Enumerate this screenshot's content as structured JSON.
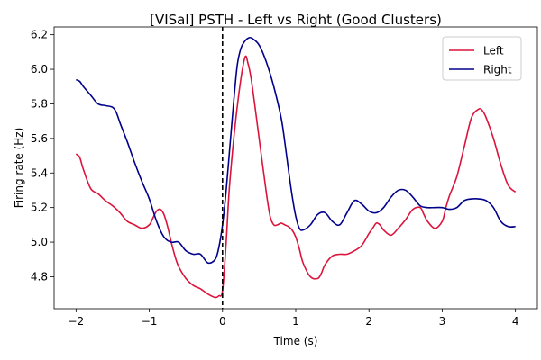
{
  "chart_data": {
    "type": "line",
    "title": "[VISal] PSTH - Left vs Right (Good Clusters)",
    "xlabel": "Time (s)",
    "ylabel": "Firing rate (Hz)",
    "xlim": [
      -2.3,
      4.3
    ],
    "ylim": [
      4.615,
      6.245
    ],
    "xticks": [
      -2,
      -1,
      0,
      1,
      2,
      3,
      4
    ],
    "yticks": [
      4.8,
      5.0,
      5.2,
      5.4,
      5.6,
      5.8,
      6.0,
      6.2
    ],
    "xtick_labels": [
      "−2",
      "−1",
      "0",
      "1",
      "2",
      "3",
      "4"
    ],
    "ytick_labels": [
      "4.8",
      "5.0",
      "5.2",
      "5.4",
      "5.6",
      "5.8",
      "6.0",
      "6.2"
    ],
    "vline": {
      "x": 0,
      "style": "dashed",
      "color": "#000000"
    },
    "legend_position": "top-right",
    "grid": false,
    "series": [
      {
        "name": "Left",
        "color": "#dc143c",
        "x": [
          -2.0,
          -1.95,
          -1.9,
          -1.8,
          -1.7,
          -1.6,
          -1.5,
          -1.4,
          -1.3,
          -1.2,
          -1.1,
          -1.0,
          -0.95,
          -0.9,
          -0.85,
          -0.8,
          -0.75,
          -0.7,
          -0.65,
          -0.6,
          -0.5,
          -0.4,
          -0.3,
          -0.2,
          -0.1,
          -0.05,
          0.0,
          0.05,
          0.1,
          0.2,
          0.3,
          0.35,
          0.4,
          0.5,
          0.6,
          0.65,
          0.7,
          0.75,
          0.8,
          0.85,
          0.9,
          0.95,
          1.0,
          1.05,
          1.1,
          1.2,
          1.3,
          1.35,
          1.4,
          1.5,
          1.6,
          1.7,
          1.8,
          1.9,
          2.0,
          2.05,
          2.1,
          2.15,
          2.2,
          2.3,
          2.4,
          2.5,
          2.6,
          2.7,
          2.75,
          2.8,
          2.9,
          3.0,
          3.05,
          3.1,
          3.2,
          3.3,
          3.4,
          3.5,
          3.55,
          3.6,
          3.7,
          3.8,
          3.9,
          4.0
        ],
        "values": [
          5.51,
          5.49,
          5.42,
          5.31,
          5.28,
          5.24,
          5.21,
          5.17,
          5.12,
          5.1,
          5.08,
          5.1,
          5.14,
          5.18,
          5.19,
          5.16,
          5.09,
          5.0,
          4.92,
          4.86,
          4.79,
          4.75,
          4.73,
          4.7,
          4.68,
          4.69,
          4.72,
          5.0,
          5.35,
          5.78,
          6.06,
          6.03,
          5.92,
          5.6,
          5.28,
          5.15,
          5.1,
          5.1,
          5.11,
          5.1,
          5.09,
          5.07,
          5.03,
          4.96,
          4.88,
          4.8,
          4.79,
          4.82,
          4.87,
          4.92,
          4.93,
          4.93,
          4.95,
          4.98,
          5.05,
          5.08,
          5.11,
          5.1,
          5.07,
          5.04,
          5.08,
          5.13,
          5.19,
          5.2,
          5.16,
          5.12,
          5.08,
          5.12,
          5.2,
          5.27,
          5.38,
          5.55,
          5.72,
          5.77,
          5.76,
          5.72,
          5.6,
          5.45,
          5.33,
          5.29
        ]
      },
      {
        "name": "Right",
        "color": "#00008b",
        "x": [
          -2.0,
          -1.95,
          -1.9,
          -1.8,
          -1.7,
          -1.6,
          -1.5,
          -1.45,
          -1.4,
          -1.3,
          -1.2,
          -1.1,
          -1.0,
          -0.9,
          -0.8,
          -0.7,
          -0.6,
          -0.5,
          -0.4,
          -0.3,
          -0.2,
          -0.1,
          -0.05,
          0.0,
          0.05,
          0.1,
          0.15,
          0.2,
          0.25,
          0.3,
          0.35,
          0.4,
          0.5,
          0.6,
          0.7,
          0.8,
          0.85,
          0.9,
          0.95,
          1.0,
          1.05,
          1.1,
          1.2,
          1.3,
          1.4,
          1.5,
          1.6,
          1.7,
          1.8,
          1.9,
          2.0,
          2.1,
          2.2,
          2.3,
          2.4,
          2.5,
          2.6,
          2.7,
          2.8,
          2.9,
          3.0,
          3.1,
          3.2,
          3.3,
          3.4,
          3.5,
          3.6,
          3.7,
          3.8,
          3.9,
          4.0
        ],
        "values": [
          5.94,
          5.93,
          5.9,
          5.85,
          5.8,
          5.79,
          5.78,
          5.75,
          5.69,
          5.58,
          5.46,
          5.35,
          5.25,
          5.12,
          5.03,
          5.0,
          5.0,
          4.95,
          4.93,
          4.93,
          4.88,
          4.9,
          4.97,
          5.1,
          5.3,
          5.55,
          5.8,
          6.02,
          6.12,
          6.16,
          6.18,
          6.18,
          6.14,
          6.04,
          5.9,
          5.72,
          5.58,
          5.42,
          5.27,
          5.15,
          5.08,
          5.07,
          5.1,
          5.16,
          5.17,
          5.12,
          5.1,
          5.17,
          5.24,
          5.22,
          5.18,
          5.17,
          5.2,
          5.26,
          5.3,
          5.3,
          5.26,
          5.21,
          5.2,
          5.2,
          5.2,
          5.19,
          5.2,
          5.24,
          5.25,
          5.25,
          5.24,
          5.2,
          5.12,
          5.09,
          5.09
        ]
      }
    ]
  }
}
